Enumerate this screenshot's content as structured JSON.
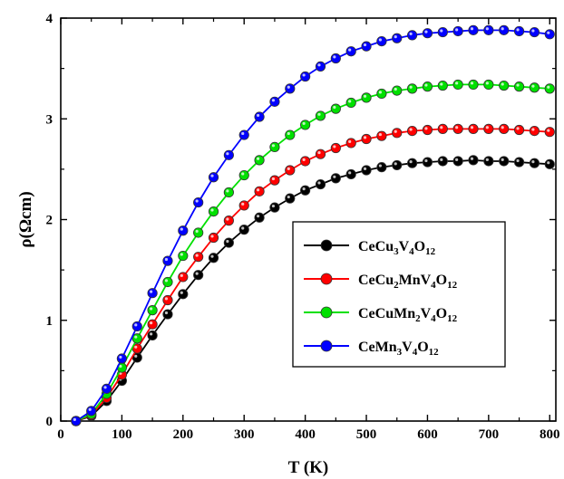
{
  "chart_data": {
    "type": "line",
    "title": "",
    "xlabel": "T (K)",
    "ylabel": "ρ(Ωcm)",
    "xlim": [
      0,
      810
    ],
    "ylim": [
      0,
      4
    ],
    "xticks": [
      0,
      100,
      200,
      300,
      400,
      500,
      600,
      700,
      800
    ],
    "yticks": [
      0,
      1,
      2,
      3,
      4
    ],
    "grid": false,
    "legend_position": "center-right",
    "x": [
      25,
      50,
      75,
      100,
      125,
      150,
      175,
      200,
      225,
      250,
      275,
      300,
      325,
      350,
      375,
      400,
      425,
      450,
      475,
      500,
      525,
      550,
      575,
      600,
      625,
      650,
      675,
      700,
      725,
      750,
      775,
      800
    ],
    "series": [
      {
        "name": "CeCu3V4O12",
        "name_parts": [
          [
            "CeCu",
            "n"
          ],
          [
            "3",
            "sub"
          ],
          [
            "V",
            "n"
          ],
          [
            "4",
            "sub"
          ],
          [
            "O",
            "n"
          ],
          [
            "12",
            "sub"
          ]
        ],
        "color": "#000000",
        "values": [
          0.0,
          0.05,
          0.2,
          0.4,
          0.63,
          0.85,
          1.06,
          1.26,
          1.45,
          1.62,
          1.77,
          1.9,
          2.02,
          2.12,
          2.21,
          2.29,
          2.35,
          2.41,
          2.45,
          2.49,
          2.52,
          2.54,
          2.56,
          2.57,
          2.58,
          2.58,
          2.59,
          2.58,
          2.58,
          2.57,
          2.56,
          2.55
        ]
      },
      {
        "name": "CeCu2MnV4O12",
        "name_parts": [
          [
            "CeCu",
            "n"
          ],
          [
            "2",
            "sub"
          ],
          [
            "MnV",
            "n"
          ],
          [
            "4",
            "sub"
          ],
          [
            "O",
            "n"
          ],
          [
            "12",
            "sub"
          ]
        ],
        "color": "#ff0000",
        "values": [
          0.0,
          0.06,
          0.23,
          0.46,
          0.72,
          0.96,
          1.2,
          1.43,
          1.63,
          1.82,
          1.99,
          2.14,
          2.28,
          2.39,
          2.49,
          2.58,
          2.65,
          2.71,
          2.76,
          2.8,
          2.83,
          2.86,
          2.88,
          2.89,
          2.9,
          2.9,
          2.9,
          2.9,
          2.9,
          2.89,
          2.88,
          2.87
        ]
      },
      {
        "name": "CeCuMn2V4O12",
        "name_parts": [
          [
            "CeCuMn",
            "n"
          ],
          [
            "2",
            "sub"
          ],
          [
            "V",
            "n"
          ],
          [
            "4",
            "sub"
          ],
          [
            "O",
            "n"
          ],
          [
            "12",
            "sub"
          ]
        ],
        "color": "#00e000",
        "values": [
          0.0,
          0.07,
          0.27,
          0.53,
          0.82,
          1.1,
          1.38,
          1.64,
          1.87,
          2.08,
          2.27,
          2.44,
          2.59,
          2.72,
          2.84,
          2.94,
          3.03,
          3.1,
          3.16,
          3.21,
          3.25,
          3.28,
          3.3,
          3.32,
          3.33,
          3.34,
          3.34,
          3.34,
          3.33,
          3.32,
          3.31,
          3.3
        ]
      },
      {
        "name": "CeMn3V4O12",
        "name_parts": [
          [
            "CeMn",
            "n"
          ],
          [
            "3",
            "sub"
          ],
          [
            "V",
            "n"
          ],
          [
            "4",
            "sub"
          ],
          [
            "O",
            "n"
          ],
          [
            "12",
            "sub"
          ]
        ],
        "color": "#0000ff",
        "values": [
          0.0,
          0.1,
          0.32,
          0.62,
          0.94,
          1.27,
          1.59,
          1.89,
          2.17,
          2.42,
          2.64,
          2.84,
          3.02,
          3.17,
          3.3,
          3.42,
          3.52,
          3.6,
          3.67,
          3.72,
          3.77,
          3.8,
          3.83,
          3.85,
          3.86,
          3.87,
          3.88,
          3.88,
          3.88,
          3.87,
          3.86,
          3.84
        ]
      }
    ]
  }
}
